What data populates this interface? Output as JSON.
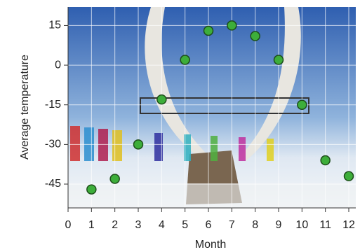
{
  "chart_data": {
    "type": "scatter",
    "x_label": "Month",
    "y_label": "Average temperature",
    "x": [
      1,
      2,
      3,
      4,
      5,
      6,
      7,
      8,
      9,
      10,
      11,
      12
    ],
    "values": [
      -47,
      -43,
      -30,
      -13,
      2,
      13,
      15,
      11,
      2,
      -15,
      -36,
      -42
    ],
    "color": "#3dae3a",
    "xlim": [
      0,
      12.3
    ],
    "ylim": [
      -54,
      22
    ],
    "xticks": [
      0,
      1,
      2,
      3,
      4,
      5,
      6,
      7,
      8,
      9,
      10,
      11,
      12
    ],
    "yticks": [
      15,
      0,
      -15,
      -30,
      -45
    ],
    "grid": true
  }
}
